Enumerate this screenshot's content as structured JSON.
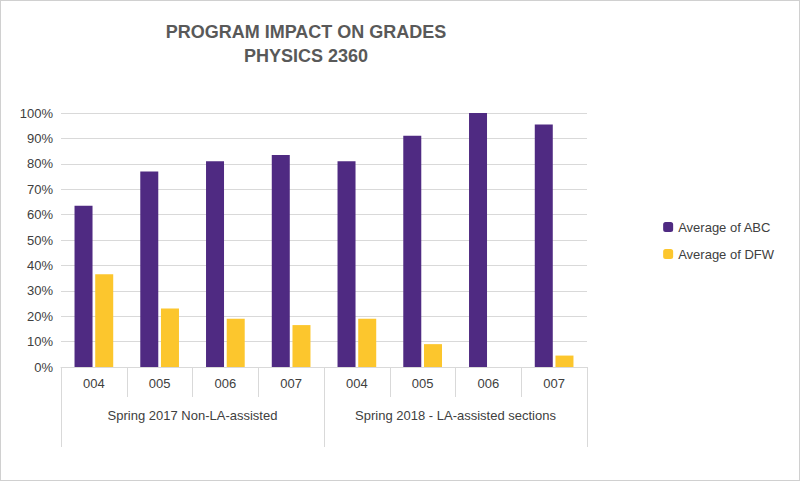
{
  "chart_data": {
    "type": "bar",
    "title": "PROGRAM IMPACT ON GRADES\nPHYSICS 2360",
    "groups": [
      {
        "name": "Spring 2017 Non-LA-assisted",
        "categories": [
          "004",
          "005",
          "006",
          "007"
        ]
      },
      {
        "name": "Spring 2018 - LA-assisted sections",
        "categories": [
          "004",
          "005",
          "006",
          "007"
        ]
      }
    ],
    "series": [
      {
        "name": "Average of ABC",
        "color": "#4f2a82",
        "values": [
          63.5,
          77,
          81,
          83.5,
          81,
          91,
          100,
          95.5
        ]
      },
      {
        "name": "Average of DFW",
        "color": "#fcc62d",
        "values": [
          36.5,
          23,
          19,
          16.5,
          19,
          9,
          0,
          4.5
        ]
      }
    ],
    "ylim": [
      0,
      100
    ],
    "yticks": [
      {
        "value": 0,
        "label": "0%"
      },
      {
        "value": 10,
        "label": "10%"
      },
      {
        "value": 20,
        "label": "20%"
      },
      {
        "value": 30,
        "label": "30%"
      },
      {
        "value": 40,
        "label": "40%"
      },
      {
        "value": 50,
        "label": "50%"
      },
      {
        "value": 60,
        "label": "60%"
      },
      {
        "value": 70,
        "label": "70%"
      },
      {
        "value": 80,
        "label": "80%"
      },
      {
        "value": 90,
        "label": "90%"
      },
      {
        "value": 100,
        "label": "100%"
      }
    ],
    "grid": true,
    "legend": "right"
  }
}
